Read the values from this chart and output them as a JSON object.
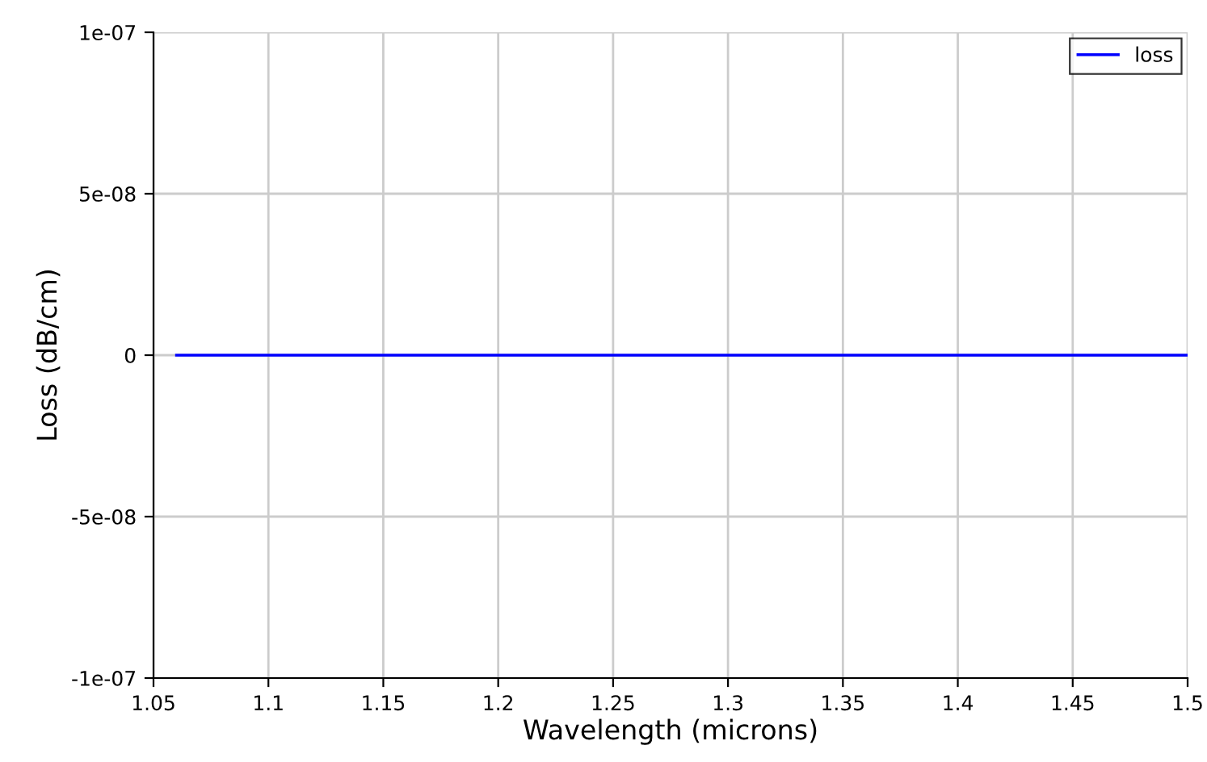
{
  "chart_data": {
    "type": "line",
    "xlabel": "Wavelength (microns)",
    "ylabel": "Loss (dB/cm)",
    "x": [
      1.06,
      1.5
    ],
    "series": [
      {
        "name": "loss",
        "color": "#0000ff",
        "values": [
          0,
          0
        ]
      }
    ],
    "xlim": [
      1.05,
      1.5
    ],
    "xticks": [
      1.05,
      1.1,
      1.15,
      1.2,
      1.25,
      1.3,
      1.35,
      1.4,
      1.45,
      1.5
    ],
    "ylim": [
      -1e-07,
      1e-07
    ],
    "yticks": [
      {
        "value": -1e-07,
        "label": "-1e-07"
      },
      {
        "value": -5e-08,
        "label": "-5e-08"
      },
      {
        "value": 0,
        "label": "0"
      },
      {
        "value": 5e-08,
        "label": "5e-08"
      },
      {
        "value": 1e-07,
        "label": "1e-07"
      }
    ],
    "grid": true,
    "legend": "top right",
    "marker": "none",
    "line_style": "solid"
  }
}
